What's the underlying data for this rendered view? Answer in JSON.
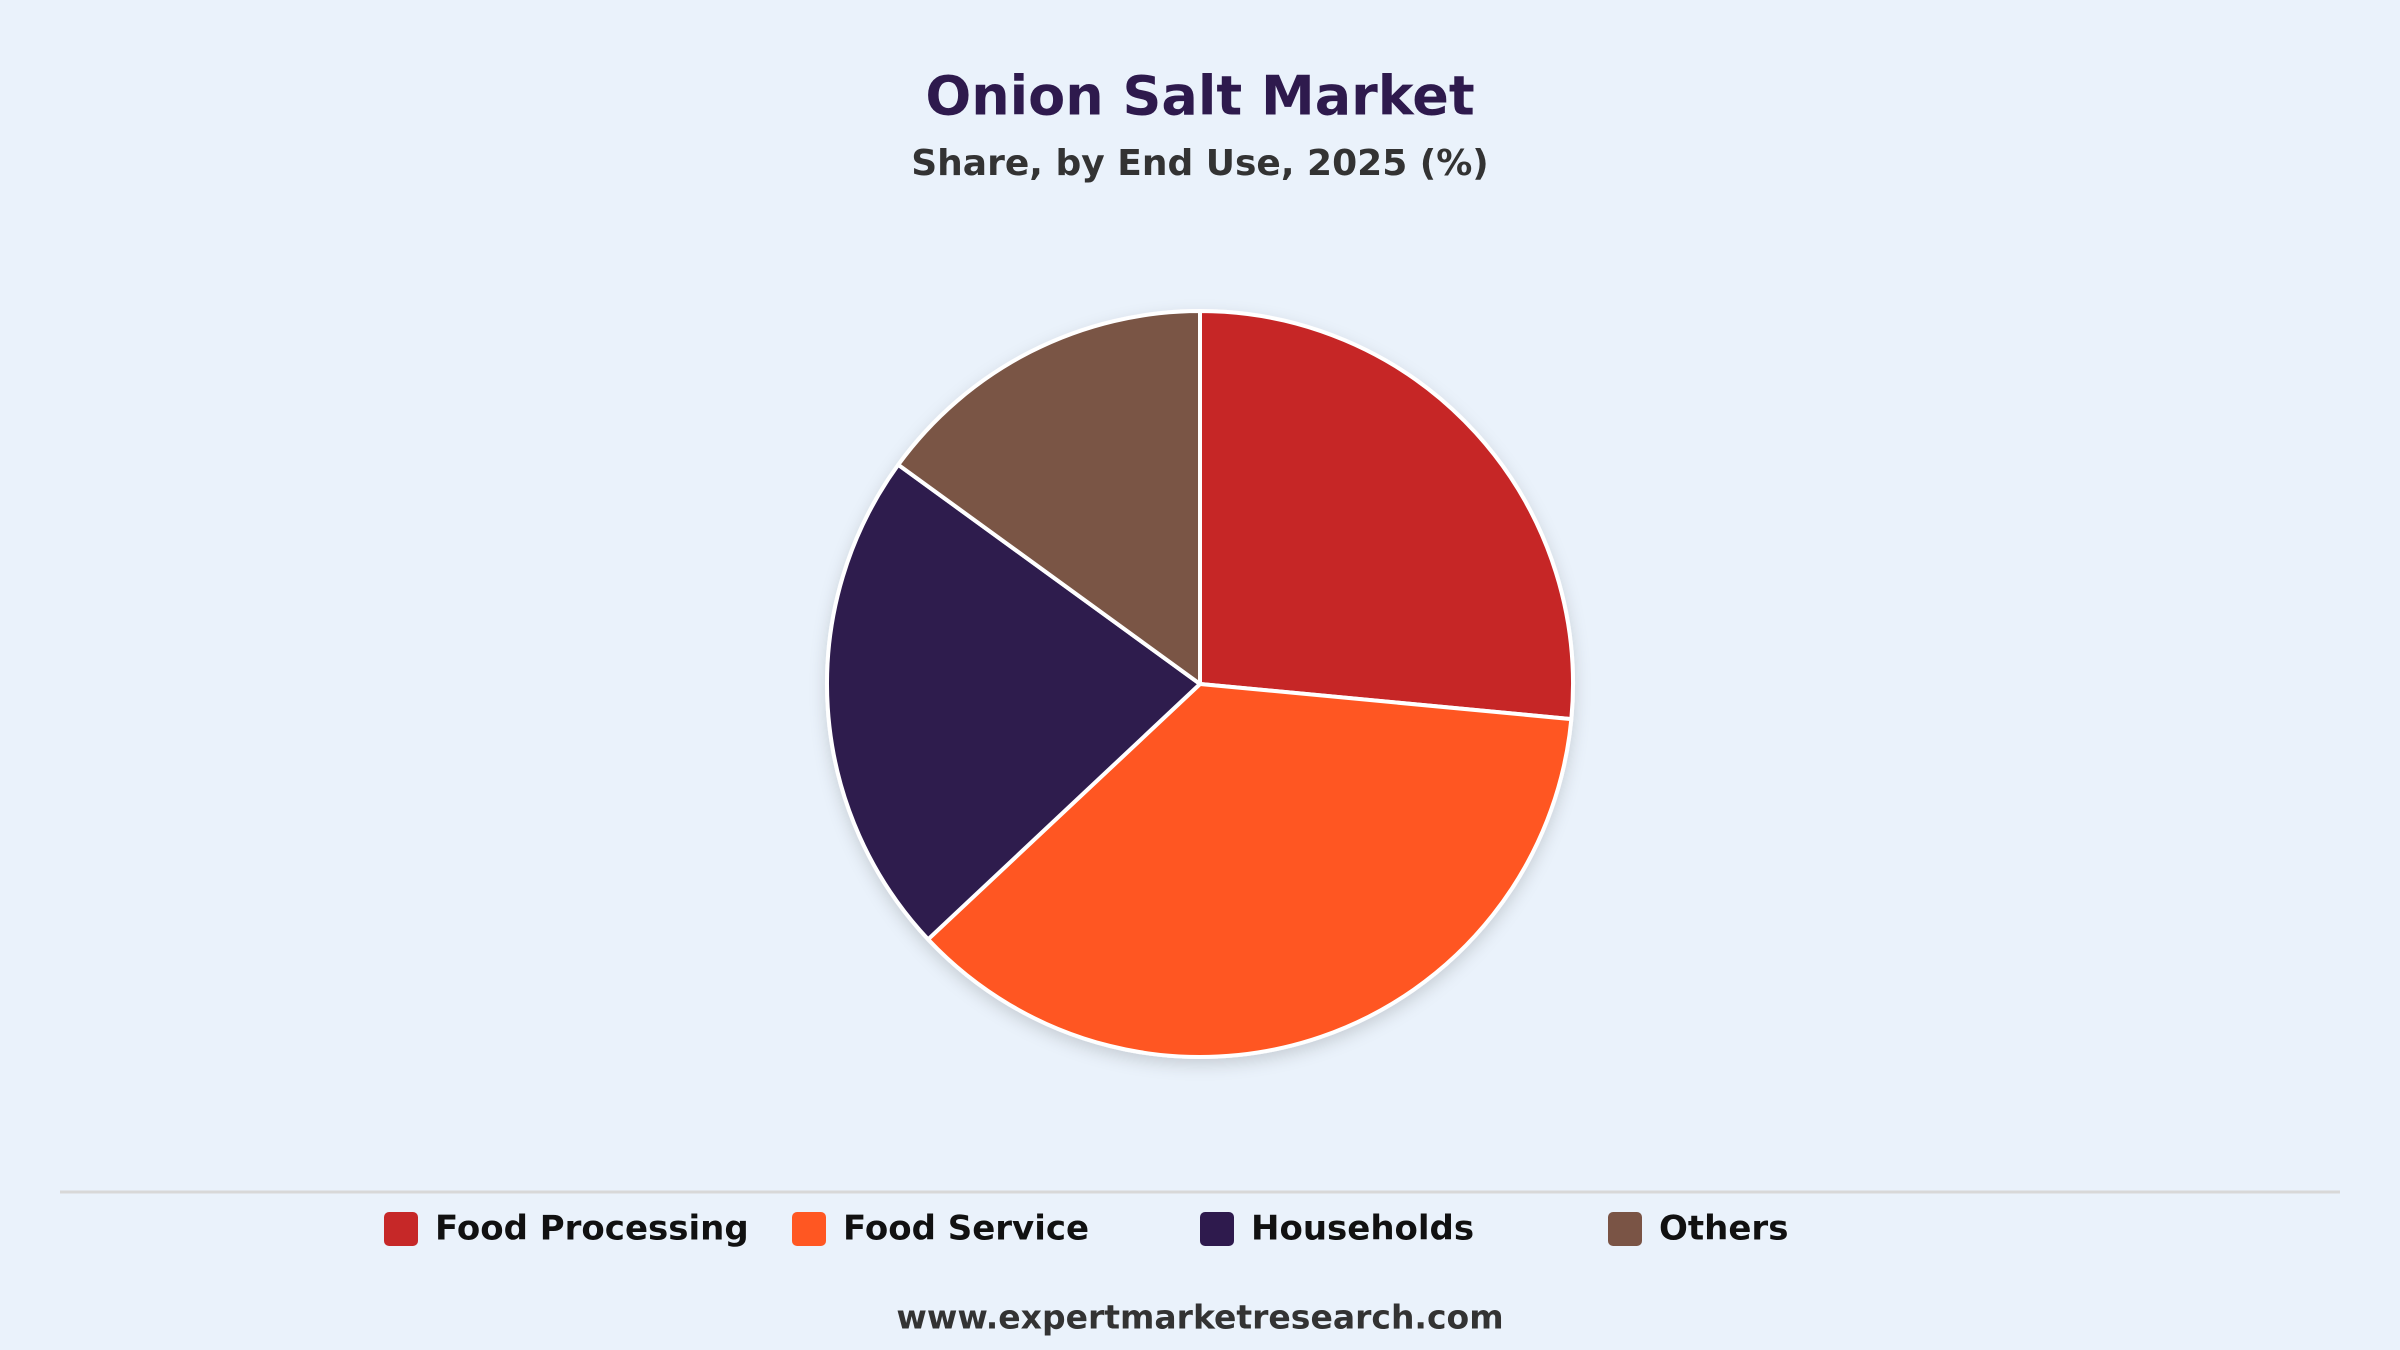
{
  "chart_data": {
    "type": "pie",
    "title": "Onion Salt Market",
    "subtitle": "Share, by End Use, 2025 (%)",
    "categories": [
      "Food Processing",
      "Food Service",
      "Households",
      "Others"
    ],
    "values": [
      26.5,
      36.5,
      22,
      15
    ],
    "colors": [
      "#C62828",
      "#FF5722",
      "#2E1A4D",
      "#7A5445"
    ],
    "legend": "bottom",
    "source": "www.expertmarketresearch.com"
  }
}
